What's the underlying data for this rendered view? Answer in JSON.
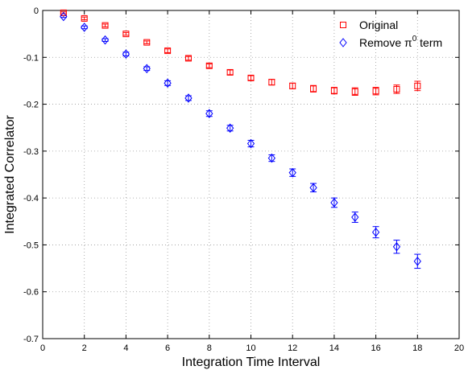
{
  "chart_data": {
    "type": "scatter",
    "title": "",
    "xlabel": "Integration Time Interval",
    "ylabel": "Integrated Correlator",
    "xlim": [
      0,
      20
    ],
    "ylim": [
      -0.7,
      0
    ],
    "xticks": [
      0,
      2,
      4,
      6,
      8,
      10,
      12,
      14,
      16,
      18,
      20
    ],
    "yticks": [
      0,
      -0.1,
      -0.2,
      -0.3,
      -0.4,
      -0.5,
      -0.6,
      -0.7
    ],
    "grid": "dotted",
    "legend_position": "top-right",
    "x": [
      1,
      2,
      3,
      4,
      5,
      6,
      7,
      8,
      9,
      10,
      11,
      12,
      13,
      14,
      15,
      16,
      17,
      18
    ],
    "series": [
      {
        "name": "Original",
        "marker": "square",
        "color": "#ff0000",
        "y": [
          -0.005,
          -0.017,
          -0.032,
          -0.05,
          -0.068,
          -0.086,
          -0.102,
          -0.118,
          -0.132,
          -0.144,
          -0.153,
          -0.161,
          -0.167,
          -0.171,
          -0.173,
          -0.172,
          -0.168,
          -0.161
        ],
        "err": [
          0.002,
          0.003,
          0.003,
          0.003,
          0.003,
          0.004,
          0.004,
          0.004,
          0.005,
          0.005,
          0.006,
          0.006,
          0.007,
          0.007,
          0.008,
          0.008,
          0.009,
          0.01
        ]
      },
      {
        "name": "Remove π0 term",
        "marker": "diamond",
        "color": "#0000ff",
        "y": [
          -0.013,
          -0.036,
          -0.063,
          -0.093,
          -0.124,
          -0.155,
          -0.187,
          -0.22,
          -0.251,
          -0.284,
          -0.315,
          -0.346,
          -0.378,
          -0.41,
          -0.441,
          -0.473,
          -0.504,
          -0.535
        ],
        "err": [
          0.002,
          0.003,
          0.003,
          0.004,
          0.004,
          0.005,
          0.005,
          0.006,
          0.006,
          0.007,
          0.007,
          0.008,
          0.009,
          0.01,
          0.011,
          0.012,
          0.014,
          0.015
        ]
      }
    ],
    "legend": [
      {
        "text": "Original",
        "marker": "square",
        "color": "#ff0000"
      },
      {
        "text": "Remove π",
        "sup": "0",
        "text_after": " term",
        "marker": "diamond",
        "color": "#0000ff"
      }
    ]
  }
}
